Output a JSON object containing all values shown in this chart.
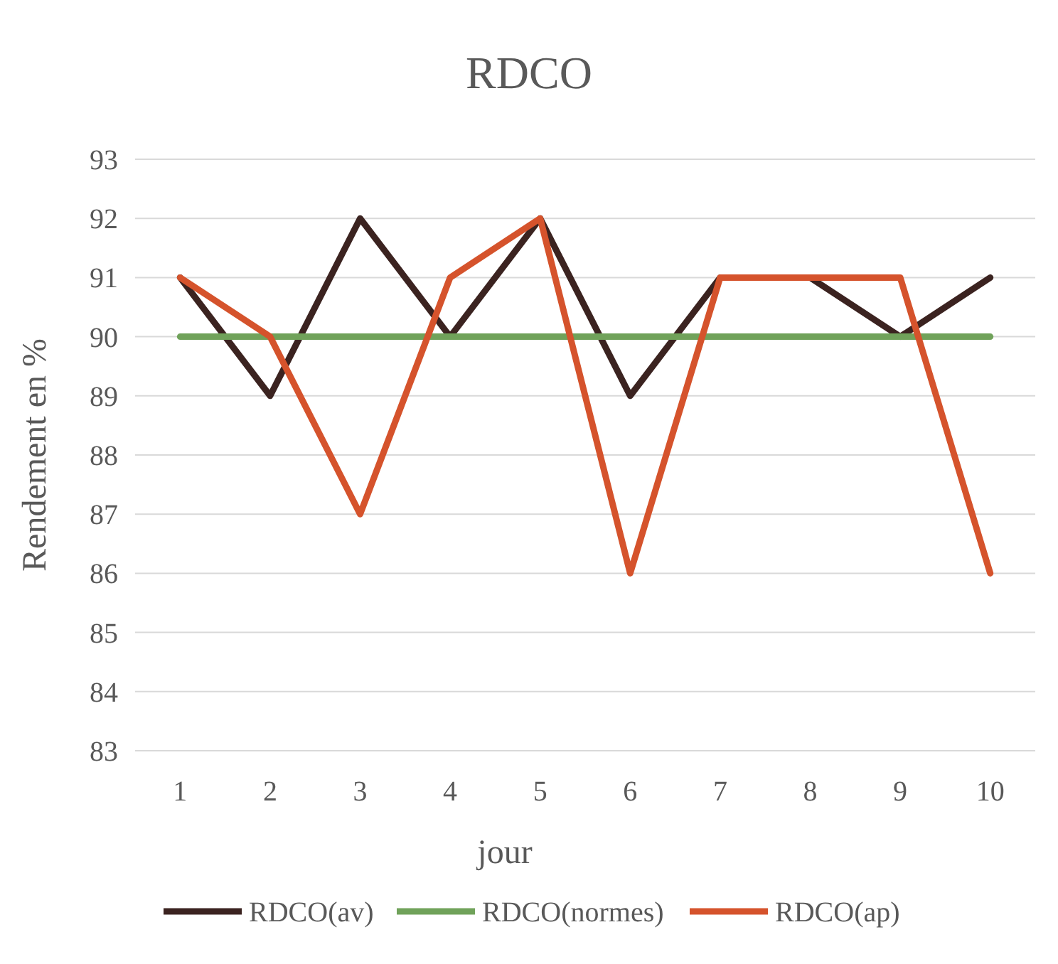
{
  "chart_data": {
    "type": "line",
    "title": "RDCO",
    "xlabel": "jour",
    "ylabel": "Rendement en %",
    "categories": [
      "1",
      "2",
      "3",
      "4",
      "5",
      "6",
      "7",
      "8",
      "9",
      "10"
    ],
    "series": [
      {
        "name": "RDCO(av)",
        "color": "#3b2320",
        "values": [
          91,
          89,
          92,
          90,
          92,
          89,
          91,
          91,
          90,
          91
        ]
      },
      {
        "name": "RDCO(normes)",
        "color": "#70a25a",
        "values": [
          90,
          90,
          90,
          90,
          90,
          90,
          90,
          90,
          90,
          90
        ]
      },
      {
        "name": "RDCO(ap)",
        "color": "#d5532c",
        "values": [
          91,
          90,
          87,
          91,
          92,
          86,
          91,
          91,
          91,
          86
        ]
      }
    ],
    "ylim": [
      83,
      93
    ],
    "yticks": [
      83,
      84,
      85,
      86,
      87,
      88,
      89,
      90,
      91,
      92,
      93
    ],
    "grid": "y",
    "legend": "bottom",
    "marker": "none",
    "line_style": "solid"
  }
}
